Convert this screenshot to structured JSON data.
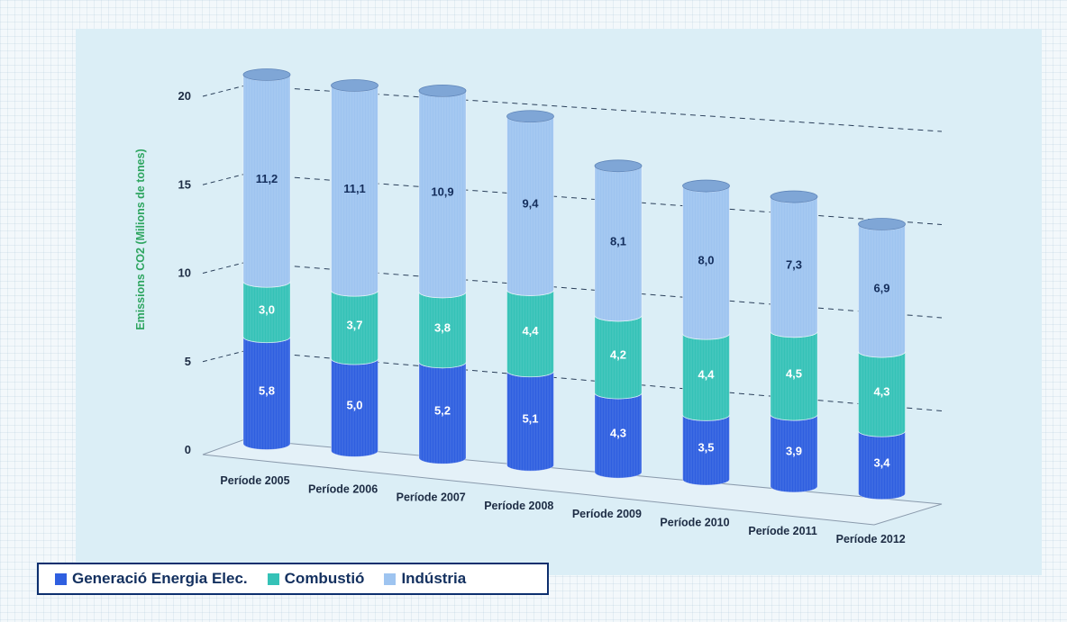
{
  "chart_data": {
    "type": "bar",
    "stacked": true,
    "title": "",
    "xlabel": "",
    "ylabel": "Emissions CO2 (Milions de tones)",
    "ylim": [
      0,
      20
    ],
    "yticks": [
      "0",
      "5",
      "10",
      "15",
      "20"
    ],
    "grid": true,
    "legend_position": "bottom-left",
    "categories": [
      "Període 2005",
      "Període 2006",
      "Període 2007",
      "Període 2008",
      "Període 2009",
      "Període 2010",
      "Període 2011",
      "Període 2012"
    ],
    "series": [
      {
        "name": "Generació Energia Elec.",
        "color": "#2f5fe0",
        "values": [
          5.8,
          5.0,
          5.2,
          5.1,
          4.3,
          3.5,
          3.9,
          3.4
        ],
        "labels": [
          "5,8",
          "5,0",
          "5,2",
          "5,1",
          "4,3",
          "3,5",
          "3,9",
          "3,4"
        ]
      },
      {
        "name": "Combustió",
        "color": "#35c2b7",
        "values": [
          3.0,
          3.7,
          3.8,
          4.4,
          4.2,
          4.4,
          4.5,
          4.3
        ],
        "labels": [
          "3,0",
          "3,7",
          "3,8",
          "4,4",
          "4,2",
          "4,4",
          "4,5",
          "4,3"
        ]
      },
      {
        "name": "Indústria",
        "color": "#9ec4f0",
        "values": [
          11.2,
          11.1,
          10.9,
          9.4,
          8.1,
          8.0,
          7.3,
          6.9
        ],
        "labels": [
          "11,2",
          "11,1",
          "10,9",
          "9,4",
          "8,1",
          "8,0",
          "7,3",
          "6,9"
        ]
      }
    ]
  },
  "colors": {
    "background": "#f3f8fb",
    "plot_area": "#dbeef6",
    "ylabel_color": "#2ea560",
    "legend_border": "#0d2f6e"
  }
}
